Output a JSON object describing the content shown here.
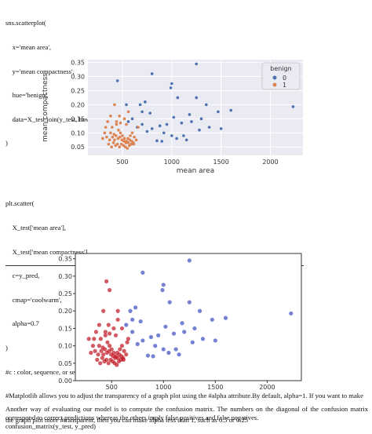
{
  "code_block_1": [
    "sns.scatterplot(",
    "    x='mean area',",
    "    y='mean compactness',",
    "    hue='benign',",
    "    data=X_test.join(y_test, how='outer')",
    ")"
  ],
  "code_block_2": [
    "plt.scatter(",
    "    X_test['mean area'],",
    "    X_test['mean compactness'],",
    "    c=y_pred,",
    "    cmap='coolwarm',",
    "    alpha=0.7",
    ")",
    "#c : color, sequence, or sequence of color",
    "#Matplotlib allows you to adjust the transparency of a graph plot using the #alpha attribute.By default, alpha=1. If you want to make",
    "the graph plot more #transparent, then you can make alpha less than 1, such as 0.5 or 0.25"
  ],
  "paragraph": "Another way of evaluating our model is to compute the confusion matrix. The numbers on the diagonal of the confusion matrix correspond to correct predictions whereas the others imply false positives and false negatives.",
  "code_last": "confusion_matrix(y_test, y_pred)",
  "colors": {
    "sns_blue": "#4c72b0",
    "sns_orange": "#dd8452",
    "cw_red": "#c1121f",
    "cw_blue": "#3b4cc0",
    "sns_bg": "#eaeaf2"
  },
  "chart_data": [
    {
      "type": "scatter",
      "title": "",
      "xlabel": "mean area",
      "ylabel": "mean compactness",
      "xlim": [
        150,
        2330
      ],
      "ylim": [
        0.02,
        0.36
      ],
      "xticks": [
        "500",
        "1000",
        "1500",
        "2000"
      ],
      "xtick_values": [
        500,
        1000,
        1500,
        2000
      ],
      "yticks": [
        "0.05",
        "0.10",
        "0.15",
        "0.20",
        "0.25",
        "0.30",
        "0.35"
      ],
      "ytick_values": [
        0.05,
        0.1,
        0.15,
        0.2,
        0.25,
        0.3,
        0.35
      ],
      "grid": true,
      "legend": {
        "title": "benign",
        "position": "top-right",
        "entries": [
          "0",
          "1"
        ]
      },
      "series": [
        {
          "name": "0",
          "color": "#4c72b0",
          "points": [
            [
              1250,
              0.345
            ],
            [
              450,
              0.285
            ],
            [
              800,
              0.31
            ],
            [
              1000,
              0.275
            ],
            [
              990,
              0.26
            ],
            [
              1060,
              0.225
            ],
            [
              1250,
              0.225
            ],
            [
              1350,
              0.2
            ],
            [
              1470,
              0.175
            ],
            [
              2230,
              0.193
            ],
            [
              1020,
              0.155
            ],
            [
              1180,
              0.165
            ],
            [
              1300,
              0.15
            ],
            [
              1200,
              0.14
            ],
            [
              1100,
              0.135
            ],
            [
              950,
              0.13
            ],
            [
              880,
              0.125
            ],
            [
              800,
              0.115
            ],
            [
              700,
              0.13
            ],
            [
              750,
              0.105
            ],
            [
              920,
              0.1
            ],
            [
              1000,
              0.09
            ],
            [
              1120,
              0.09
            ],
            [
              1280,
              0.11
            ],
            [
              1150,
              0.075
            ],
            [
              1050,
              0.08
            ],
            [
              900,
              0.07
            ],
            [
              850,
              0.072
            ],
            [
              1500,
              0.115
            ],
            [
              1600,
              0.18
            ],
            [
              600,
              0.15
            ],
            [
              560,
              0.14
            ],
            [
              650,
              0.12
            ],
            [
              680,
              0.2
            ],
            [
              730,
              0.21
            ],
            [
              540,
              0.2
            ],
            [
              780,
              0.17
            ],
            [
              700,
              0.175
            ],
            [
              1380,
              0.12
            ]
          ]
        },
        {
          "name": "1",
          "color": "#dd8452",
          "points": [
            [
              330,
              0.12
            ],
            [
              350,
              0.14
            ],
            [
              380,
              0.1
            ],
            [
              400,
              0.085
            ],
            [
              420,
              0.075
            ],
            [
              440,
              0.13
            ],
            [
              460,
              0.11
            ],
            [
              480,
              0.1
            ],
            [
              500,
              0.09
            ],
            [
              520,
              0.08
            ],
            [
              540,
              0.07
            ],
            [
              560,
              0.065
            ],
            [
              580,
              0.09
            ],
            [
              600,
              0.1
            ],
            [
              620,
              0.085
            ],
            [
              640,
              0.075
            ],
            [
              660,
              0.12
            ],
            [
              360,
              0.06
            ],
            [
              390,
              0.05
            ],
            [
              410,
              0.065
            ],
            [
              430,
              0.055
            ],
            [
              450,
              0.06
            ],
            [
              470,
              0.05
            ],
            [
              490,
              0.06
            ],
            [
              510,
              0.055
            ],
            [
              530,
              0.05
            ],
            [
              550,
              0.045
            ],
            [
              570,
              0.055
            ],
            [
              590,
              0.06
            ],
            [
              610,
              0.065
            ],
            [
              300,
              0.08
            ],
            [
              320,
              0.1
            ],
            [
              340,
              0.085
            ],
            [
              370,
              0.075
            ],
            [
              395,
              0.12
            ],
            [
              415,
              0.095
            ],
            [
              435,
              0.09
            ],
            [
              455,
              0.08
            ],
            [
              475,
              0.085
            ],
            [
              495,
              0.075
            ],
            [
              515,
              0.07
            ],
            [
              535,
              0.065
            ],
            [
              555,
              0.08
            ],
            [
              575,
              0.075
            ],
            [
              595,
              0.07
            ],
            [
              615,
              0.06
            ],
            [
              420,
              0.2
            ],
            [
              470,
              0.16
            ],
            [
              520,
              0.15
            ],
            [
              560,
              0.175
            ],
            [
              440,
              0.14
            ],
            [
              480,
              0.135
            ],
            [
              380,
              0.16
            ],
            [
              540,
              0.13
            ]
          ]
        }
      ]
    },
    {
      "type": "scatter",
      "title": "",
      "xlabel": "",
      "ylabel": "",
      "xlim": [
        150,
        2330
      ],
      "ylim": [
        0.0,
        0.365
      ],
      "xticks": [
        "500",
        "1000",
        "1500",
        "2000"
      ],
      "xtick_values": [
        500,
        1000,
        1500,
        2000
      ],
      "yticks": [
        "0.00",
        "0.05",
        "0.10",
        "0.15",
        "0.20",
        "0.25",
        "0.30",
        "0.35"
      ],
      "ytick_values": [
        0.0,
        0.05,
        0.1,
        0.15,
        0.2,
        0.25,
        0.3,
        0.35
      ],
      "grid": false,
      "cmap": "coolwarm",
      "series": [
        {
          "name": "",
          "color": "#3b4cc0",
          "points": [
            [
              1250,
              0.345
            ],
            [
              800,
              0.31
            ],
            [
              1000,
              0.275
            ],
            [
              990,
              0.26
            ],
            [
              1060,
              0.225
            ],
            [
              1250,
              0.225
            ],
            [
              1350,
              0.2
            ],
            [
              1470,
              0.175
            ],
            [
              2230,
              0.193
            ],
            [
              1020,
              0.155
            ],
            [
              1180,
              0.165
            ],
            [
              1300,
              0.15
            ],
            [
              1200,
              0.14
            ],
            [
              1100,
              0.135
            ],
            [
              950,
              0.13
            ],
            [
              880,
              0.125
            ],
            [
              800,
              0.115
            ],
            [
              750,
              0.105
            ],
            [
              920,
              0.1
            ],
            [
              1000,
              0.09
            ],
            [
              1120,
              0.09
            ],
            [
              1280,
              0.11
            ],
            [
              1150,
              0.075
            ],
            [
              1050,
              0.08
            ],
            [
              900,
              0.07
            ],
            [
              850,
              0.072
            ],
            [
              1500,
              0.115
            ],
            [
              1600,
              0.18
            ],
            [
              780,
              0.17
            ],
            [
              700,
              0.175
            ],
            [
              1380,
              0.12
            ],
            [
              680,
              0.2
            ],
            [
              730,
              0.21
            ],
            [
              640,
              0.16
            ],
            [
              700,
              0.14
            ]
          ]
        },
        {
          "name": "",
          "color": "#c1121f",
          "points": [
            [
              450,
              0.285
            ],
            [
              480,
              0.26
            ],
            [
              330,
              0.12
            ],
            [
              350,
              0.14
            ],
            [
              380,
              0.1
            ],
            [
              400,
              0.085
            ],
            [
              420,
              0.075
            ],
            [
              440,
              0.13
            ],
            [
              460,
              0.11
            ],
            [
              480,
              0.1
            ],
            [
              500,
              0.09
            ],
            [
              520,
              0.08
            ],
            [
              540,
              0.07
            ],
            [
              560,
              0.065
            ],
            [
              580,
              0.09
            ],
            [
              600,
              0.1
            ],
            [
              620,
              0.085
            ],
            [
              640,
              0.075
            ],
            [
              660,
              0.12
            ],
            [
              360,
              0.06
            ],
            [
              390,
              0.05
            ],
            [
              410,
              0.065
            ],
            [
              430,
              0.055
            ],
            [
              450,
              0.06
            ],
            [
              470,
              0.05
            ],
            [
              490,
              0.06
            ],
            [
              510,
              0.055
            ],
            [
              530,
              0.05
            ],
            [
              550,
              0.045
            ],
            [
              570,
              0.055
            ],
            [
              590,
              0.06
            ],
            [
              610,
              0.065
            ],
            [
              300,
              0.08
            ],
            [
              320,
              0.1
            ],
            [
              340,
              0.085
            ],
            [
              370,
              0.075
            ],
            [
              395,
              0.12
            ],
            [
              415,
              0.095
            ],
            [
              435,
              0.09
            ],
            [
              455,
              0.08
            ],
            [
              475,
              0.085
            ],
            [
              495,
              0.075
            ],
            [
              515,
              0.07
            ],
            [
              535,
              0.065
            ],
            [
              555,
              0.08
            ],
            [
              575,
              0.075
            ],
            [
              595,
              0.07
            ],
            [
              615,
              0.06
            ],
            [
              420,
              0.2
            ],
            [
              470,
              0.16
            ],
            [
              520,
              0.15
            ],
            [
              560,
              0.175
            ],
            [
              440,
              0.14
            ],
            [
              480,
              0.135
            ],
            [
              380,
              0.16
            ],
            [
              540,
              0.13
            ],
            [
              560,
              0.2
            ],
            [
              600,
              0.15
            ],
            [
              650,
              0.11
            ],
            [
              280,
              0.12
            ]
          ]
        }
      ]
    }
  ]
}
